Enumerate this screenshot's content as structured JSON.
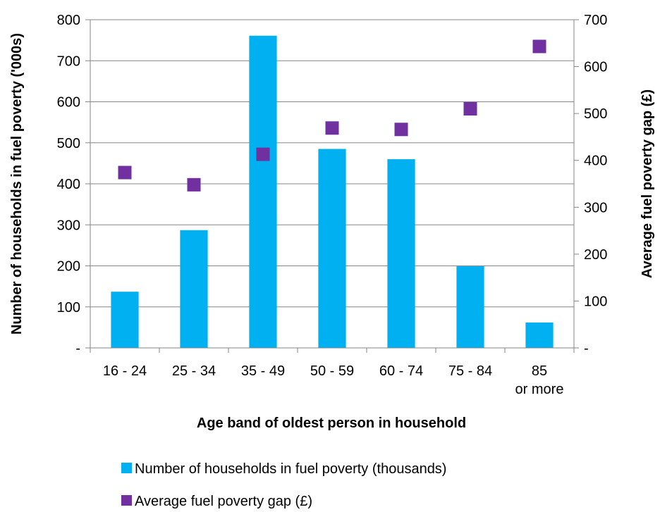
{
  "chart_data": {
    "type": "bar",
    "categories": [
      "16 - 24",
      "25 - 34",
      "35 - 49",
      "50 - 59",
      "60 - 74",
      "75 - 84",
      "85 or more"
    ],
    "series": [
      {
        "name": "Number of households in fuel poverty (thousands)",
        "kind": "bar",
        "axis": "left",
        "color": "#00B0F0",
        "values": [
          137,
          287,
          761,
          485,
          460,
          199,
          62
        ]
      },
      {
        "name": "Average fuel poverty gap (£)",
        "kind": "marker",
        "axis": "right",
        "color": "#7030A0",
        "values": [
          374,
          348,
          413,
          469,
          466,
          510,
          643
        ]
      }
    ],
    "xlabel": "Age band of oldest person in household",
    "ylabel": "Number of households in fuel poverty ('000s)",
    "y2label": "Average fuel poverty gap (£)",
    "ylim": [
      0,
      800
    ],
    "y2lim": [
      0,
      700
    ],
    "yticks": [
      "-",
      "100",
      "200",
      "300",
      "400",
      "500",
      "600",
      "700",
      "800"
    ],
    "y2ticks": [
      "-",
      "100",
      "200",
      "300",
      "400",
      "500",
      "600",
      "700"
    ],
    "grid": true,
    "legend_position": "bottom"
  }
}
